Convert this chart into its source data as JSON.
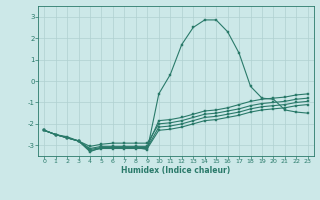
{
  "xlabel": "Humidex (Indice chaleur)",
  "background_color": "#cce8e8",
  "grid_color": "#b0d0d0",
  "line_color": "#2a7a6a",
  "xlim": [
    -0.5,
    23.5
  ],
  "ylim": [
    -3.5,
    3.5
  ],
  "yticks": [
    -3,
    -2,
    -1,
    0,
    1,
    2,
    3
  ],
  "xticks": [
    0,
    1,
    2,
    3,
    4,
    5,
    6,
    7,
    8,
    9,
    10,
    11,
    12,
    13,
    14,
    15,
    16,
    17,
    18,
    19,
    20,
    21,
    22,
    23
  ],
  "series": [
    [
      -2.3,
      -2.5,
      -2.6,
      -2.8,
      -3.3,
      -3.1,
      -3.1,
      -3.1,
      -3.1,
      -3.2,
      -0.6,
      0.3,
      1.7,
      2.5,
      2.85,
      2.85,
      2.3,
      1.3,
      -0.25,
      -0.8,
      -0.85,
      -1.35,
      -1.45,
      -1.5
    ],
    [
      -2.3,
      -2.5,
      -2.65,
      -2.8,
      -3.15,
      -3.05,
      -3.05,
      -3.05,
      -3.05,
      -3.05,
      -1.85,
      -1.8,
      -1.7,
      -1.55,
      -1.4,
      -1.35,
      -1.25,
      -1.1,
      -0.95,
      -0.85,
      -0.8,
      -0.75,
      -0.65,
      -0.6
    ],
    [
      -2.3,
      -2.5,
      -2.65,
      -2.8,
      -3.05,
      -2.95,
      -2.9,
      -2.9,
      -2.9,
      -2.9,
      -2.0,
      -1.95,
      -1.85,
      -1.7,
      -1.55,
      -1.5,
      -1.4,
      -1.3,
      -1.15,
      -1.05,
      -1.0,
      -0.95,
      -0.85,
      -0.8
    ],
    [
      -2.3,
      -2.5,
      -2.65,
      -2.8,
      -3.2,
      -3.1,
      -3.1,
      -3.1,
      -3.1,
      -3.1,
      -2.15,
      -2.1,
      -2.0,
      -1.85,
      -1.7,
      -1.65,
      -1.55,
      -1.45,
      -1.3,
      -1.2,
      -1.15,
      -1.1,
      -1.0,
      -0.95
    ],
    [
      -2.3,
      -2.5,
      -2.65,
      -2.8,
      -3.25,
      -3.15,
      -3.15,
      -3.15,
      -3.15,
      -3.15,
      -2.3,
      -2.25,
      -2.15,
      -2.0,
      -1.85,
      -1.8,
      -1.7,
      -1.6,
      -1.45,
      -1.35,
      -1.3,
      -1.25,
      -1.15,
      -1.1
    ]
  ]
}
